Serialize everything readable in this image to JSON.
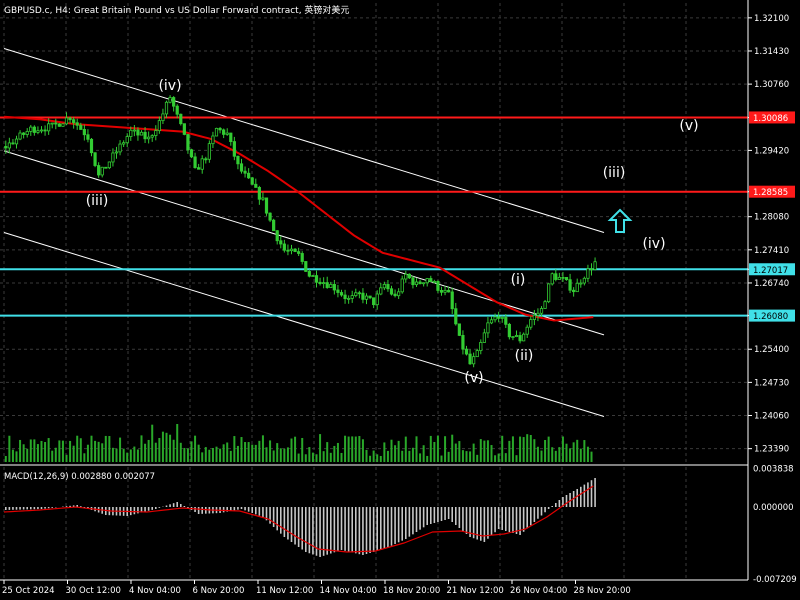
{
  "header": {
    "title": "GBPUSD.c, H4:  Great Britain Pound vs US Dollar Forward contract, 英镑对美元"
  },
  "macd_label": "MACD(12,26,9) 0.002880 0.002077",
  "colors": {
    "background": "#000000",
    "grid": "#3a3a3a",
    "candle": "#33cc33",
    "ma": "#e00000",
    "resistance": "#ff1a1a",
    "support": "#40e0e8",
    "channel": "#ffffff",
    "arrow": "#40e0e8",
    "macd_hist": "#c8c8c8",
    "macd_signal": "#e00000"
  },
  "chart_data": {
    "type": "candlestick",
    "symbol": "GBPUSD.c",
    "timeframe": "H4",
    "price_axis": {
      "range": [
        1.231,
        1.324
      ],
      "ticks": [
        "1.32100",
        "1.31430",
        "1.30760",
        "1.30086",
        "1.29420",
        "1.28585",
        "1.28080",
        "1.27410",
        "1.27017",
        "1.26740",
        "1.26080",
        "1.25400",
        "1.24730",
        "1.24060",
        "1.23390"
      ],
      "highlighted": [
        {
          "label": "1.30086",
          "role": "resistance"
        },
        {
          "label": "1.28585",
          "role": "resistance"
        },
        {
          "label": "1.27017",
          "role": "support"
        },
        {
          "label": "1.26080",
          "role": "support"
        }
      ]
    },
    "time_axis": {
      "labels": [
        "25 Oct 2024",
        "30 Oct 12:00",
        "4 Nov 04:00",
        "6 Nov 20:00",
        "11 Nov 12:00",
        "14 Nov 04:00",
        "18 Nov 20:00",
        "21 Nov 12:00",
        "26 Nov 04:00",
        "28 Nov 20:00"
      ]
    },
    "horizontal_levels": [
      {
        "price": 1.30086,
        "role": "resistance"
      },
      {
        "price": 1.28585,
        "role": "resistance"
      },
      {
        "price": 1.27017,
        "role": "support"
      },
      {
        "price": 1.2608,
        "role": "support"
      }
    ],
    "current_price": 1.27017,
    "wave_labels": [
      {
        "text": "(iv)",
        "price": 1.3068
      },
      {
        "text": "(iii)",
        "price": 1.2822
      },
      {
        "text": "(v)",
        "price": 1.2466
      },
      {
        "text": "(i)",
        "price": 1.266
      },
      {
        "text": "(ii)",
        "price": 1.2525
      },
      {
        "text": "(v)",
        "price": 1.2966
      },
      {
        "text": "(iii)",
        "price": 1.2868
      },
      {
        "text": "(iv)",
        "price": 1.2733
      }
    ],
    "close_path": [
      {
        "t": 0,
        "p": 1.295
      },
      {
        "t": 7,
        "p": 1.2985
      },
      {
        "t": 13,
        "p": 1.299
      },
      {
        "t": 18,
        "p": 1.301
      },
      {
        "t": 23,
        "p": 1.297
      },
      {
        "t": 26,
        "p": 1.289
      },
      {
        "t": 30,
        "p": 1.293
      },
      {
        "t": 35,
        "p": 1.298
      },
      {
        "t": 40,
        "p": 1.2965
      },
      {
        "t": 43,
        "p": 1.3
      },
      {
        "t": 46,
        "p": 1.305
      },
      {
        "t": 49,
        "p": 1.299
      },
      {
        "t": 53,
        "p": 1.29
      },
      {
        "t": 56,
        "p": 1.293
      },
      {
        "t": 59,
        "p": 1.2985
      },
      {
        "t": 62,
        "p": 1.2975
      },
      {
        "t": 65,
        "p": 1.291
      },
      {
        "t": 69,
        "p": 1.287
      },
      {
        "t": 72,
        "p": 1.284
      },
      {
        "t": 75,
        "p": 1.278
      },
      {
        "t": 78,
        "p": 1.274
      },
      {
        "t": 82,
        "p": 1.273
      },
      {
        "t": 85,
        "p": 1.269
      },
      {
        "t": 88,
        "p": 1.268
      },
      {
        "t": 92,
        "p": 1.2665
      },
      {
        "t": 96,
        "p": 1.264
      },
      {
        "t": 99,
        "p": 1.265
      },
      {
        "t": 103,
        "p": 1.2635
      },
      {
        "t": 106,
        "p": 1.267
      },
      {
        "t": 109,
        "p": 1.2645
      },
      {
        "t": 112,
        "p": 1.269
      },
      {
        "t": 115,
        "p": 1.267
      },
      {
        "t": 118,
        "p": 1.2685
      },
      {
        "t": 121,
        "p": 1.2665
      },
      {
        "t": 124,
        "p": 1.265
      },
      {
        "t": 127,
        "p": 1.256
      },
      {
        "t": 130,
        "p": 1.251
      },
      {
        "t": 132,
        "p": 1.253
      },
      {
        "t": 135,
        "p": 1.259
      },
      {
        "t": 138,
        "p": 1.261
      },
      {
        "t": 141,
        "p": 1.257
      },
      {
        "t": 144,
        "p": 1.256
      },
      {
        "t": 147,
        "p": 1.26
      },
      {
        "t": 150,
        "p": 1.262
      },
      {
        "t": 153,
        "p": 1.269
      },
      {
        "t": 156,
        "p": 1.268
      },
      {
        "t": 159,
        "p": 1.266
      },
      {
        "t": 162,
        "p": 1.269
      },
      {
        "t": 165,
        "p": 1.2715
      }
    ],
    "ma_path": [
      {
        "t": 0,
        "p": 1.301
      },
      {
        "t": 10,
        "p": 1.3005
      },
      {
        "t": 20,
        "p": 1.2995
      },
      {
        "t": 30,
        "p": 1.299
      },
      {
        "t": 40,
        "p": 1.2985
      },
      {
        "t": 50,
        "p": 1.298
      },
      {
        "t": 58,
        "p": 1.2965
      },
      {
        "t": 66,
        "p": 1.2935
      },
      {
        "t": 74,
        "p": 1.29
      },
      {
        "t": 82,
        "p": 1.286
      },
      {
        "t": 90,
        "p": 1.2815
      },
      {
        "t": 98,
        "p": 1.277
      },
      {
        "t": 106,
        "p": 1.2735
      },
      {
        "t": 114,
        "p": 1.272
      },
      {
        "t": 122,
        "p": 1.2705
      },
      {
        "t": 130,
        "p": 1.267
      },
      {
        "t": 138,
        "p": 1.2635
      },
      {
        "t": 146,
        "p": 1.261
      },
      {
        "t": 154,
        "p": 1.2598
      },
      {
        "t": 165,
        "p": 1.2605
      }
    ],
    "channels": [
      {
        "start": {
          "t": 0,
          "p": 1.3148
        },
        "end": {
          "t": 168,
          "p": 1.2776
        }
      },
      {
        "start": {
          "t": 0,
          "p": 1.2941
        },
        "end": {
          "t": 168,
          "p": 1.2569
        }
      },
      {
        "start": {
          "t": 0,
          "p": 1.2776
        },
        "end": {
          "t": 168,
          "p": 1.2404
        }
      }
    ],
    "macd": {
      "axis_ticks": [
        "0.003838",
        "0.000000",
        "-0.007209"
      ],
      "range": [
        -0.0073,
        0.004
      ],
      "histogram_path": [
        {
          "t": 0,
          "v": -0.0003
        },
        {
          "t": 10,
          "v": -0.0002
        },
        {
          "t": 20,
          "v": 0.0002
        },
        {
          "t": 28,
          "v": -0.0008
        },
        {
          "t": 34,
          "v": -0.0009
        },
        {
          "t": 42,
          "v": -0.0002
        },
        {
          "t": 48,
          "v": 0.0005
        },
        {
          "t": 54,
          "v": -0.0007
        },
        {
          "t": 60,
          "v": -0.0006
        },
        {
          "t": 66,
          "v": -0.0002
        },
        {
          "t": 72,
          "v": -0.001
        },
        {
          "t": 78,
          "v": -0.003
        },
        {
          "t": 84,
          "v": -0.0045
        },
        {
          "t": 88,
          "v": -0.005
        },
        {
          "t": 94,
          "v": -0.0043
        },
        {
          "t": 100,
          "v": -0.0048
        },
        {
          "t": 106,
          "v": -0.0042
        },
        {
          "t": 112,
          "v": -0.0032
        },
        {
          "t": 118,
          "v": -0.0018
        },
        {
          "t": 124,
          "v": -0.0012
        },
        {
          "t": 130,
          "v": -0.003
        },
        {
          "t": 134,
          "v": -0.0035
        },
        {
          "t": 138,
          "v": -0.0022
        },
        {
          "t": 144,
          "v": -0.0028
        },
        {
          "t": 148,
          "v": -0.0015
        },
        {
          "t": 152,
          "v": -0.0002
        },
        {
          "t": 156,
          "v": 0.001
        },
        {
          "t": 160,
          "v": 0.0018
        },
        {
          "t": 165,
          "v": 0.0029
        }
      ],
      "signal_path": [
        {
          "t": 0,
          "v": -0.0005
        },
        {
          "t": 10,
          "v": -0.0003
        },
        {
          "t": 20,
          "v": 0.0
        },
        {
          "t": 30,
          "v": -0.0004
        },
        {
          "t": 40,
          "v": -0.0005
        },
        {
          "t": 50,
          "v": -0.0001
        },
        {
          "t": 58,
          "v": -0.0003
        },
        {
          "t": 66,
          "v": -0.0004
        },
        {
          "t": 74,
          "v": -0.0012
        },
        {
          "t": 82,
          "v": -0.003
        },
        {
          "t": 88,
          "v": -0.0042
        },
        {
          "t": 96,
          "v": -0.0045
        },
        {
          "t": 104,
          "v": -0.0044
        },
        {
          "t": 112,
          "v": -0.0036
        },
        {
          "t": 120,
          "v": -0.0025
        },
        {
          "t": 128,
          "v": -0.0024
        },
        {
          "t": 134,
          "v": -0.0029
        },
        {
          "t": 140,
          "v": -0.0027
        },
        {
          "t": 146,
          "v": -0.0022
        },
        {
          "t": 152,
          "v": -0.001
        },
        {
          "t": 158,
          "v": 0.0005
        },
        {
          "t": 165,
          "v": 0.0021
        }
      ]
    }
  }
}
